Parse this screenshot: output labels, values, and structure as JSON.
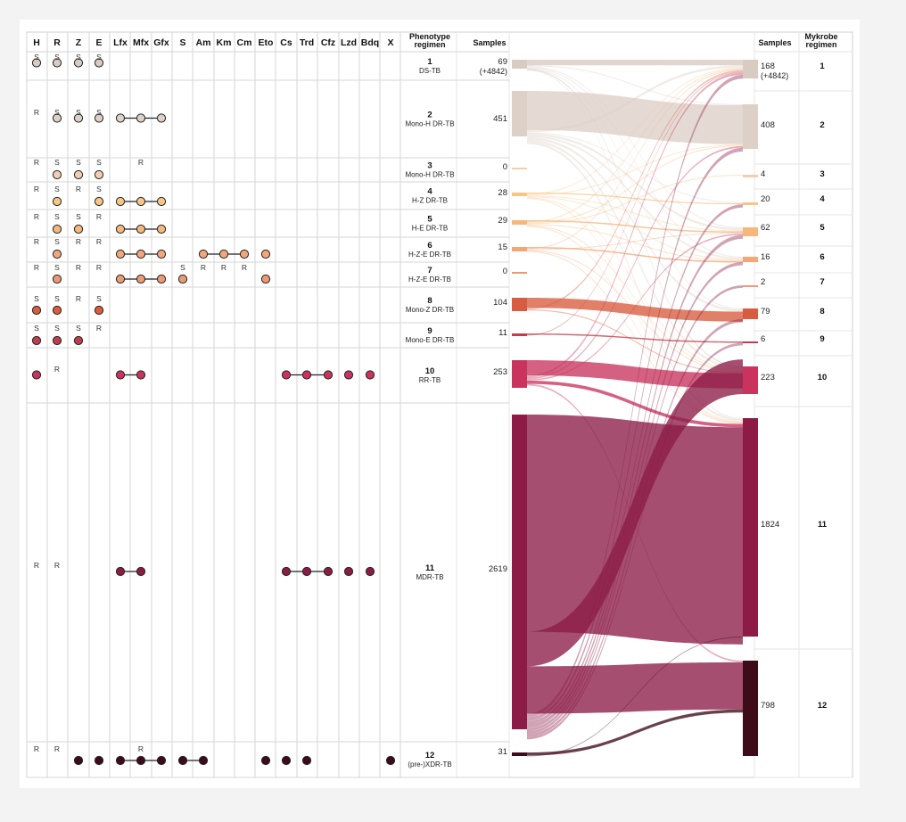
{
  "drug_headers": [
    "H",
    "R",
    "Z",
    "E",
    "Lfx",
    "Mfx",
    "Gfx",
    "S",
    "Am",
    "Km",
    "Cm",
    "Eto",
    "Cs",
    "Trd",
    "Cfz",
    "Lzd",
    "Bdq",
    "X"
  ],
  "phenotype_header": [
    "Phenotype",
    "regimen"
  ],
  "samples_header": "Samples",
  "mykrobe_header": [
    "Mykrobe",
    "regimen"
  ],
  "colors": {
    "1": "#d8cbc2",
    "2": "#ddd0c6",
    "3": "#f2cdb0",
    "4": "#f7c586",
    "5": "#f5b77b",
    "6": "#f2a77a",
    "7": "#ec9a75",
    "8": "#d85c3f",
    "9": "#c03d4d",
    "10": "#c8345d",
    "11": "#8c1c46",
    "12": "#3e0b18"
  },
  "regimens": [
    {
      "num": "1",
      "name": "DS-TB",
      "samples": "69",
      "samples_extra": "(+4842)",
      "letters": [
        {
          "c": "H",
          "t": "S"
        },
        {
          "c": "R",
          "t": "S"
        },
        {
          "c": "Z",
          "t": "S"
        },
        {
          "c": "E",
          "t": "S"
        }
      ],
      "dots": [
        {
          "c": "H",
          "l": 0
        },
        {
          "c": "R",
          "l": 0
        },
        {
          "c": "Z",
          "l": 0
        },
        {
          "c": "E",
          "l": 0
        }
      ],
      "lines": []
    },
    {
      "num": "2",
      "name": "Mono-H DR-TB",
      "samples": "451",
      "samples_extra": "",
      "letters": [
        {
          "c": "H",
          "t": "R"
        },
        {
          "c": "R",
          "t": "S"
        },
        {
          "c": "Z",
          "t": "S"
        },
        {
          "c": "E",
          "t": "S"
        }
      ],
      "dots": [
        {
          "c": "R",
          "l": 0
        },
        {
          "c": "Z",
          "l": 0
        },
        {
          "c": "E",
          "l": 0
        },
        {
          "c": "Lfx",
          "l": 0
        },
        {
          "c": "Mfx",
          "l": 0
        },
        {
          "c": "Gfx",
          "l": 0
        }
      ],
      "lines": [
        [
          "Lfx",
          "Gfx"
        ]
      ]
    },
    {
      "num": "3",
      "name": "Mono-H DR-TB",
      "samples": "0",
      "samples_extra": "",
      "letters": [
        {
          "c": "H",
          "t": "R"
        },
        {
          "c": "R",
          "t": "S"
        },
        {
          "c": "Z",
          "t": "S"
        },
        {
          "c": "E",
          "t": "S"
        },
        {
          "c": "Mfx",
          "t": "R"
        }
      ],
      "dots": [
        {
          "c": "R",
          "l": 1
        },
        {
          "c": "Z",
          "l": 1
        },
        {
          "c": "E",
          "l": 1
        }
      ],
      "lines": []
    },
    {
      "num": "4",
      "name": "H-Z DR-TB",
      "samples": "28",
      "samples_extra": "",
      "letters": [
        {
          "c": "H",
          "t": "R"
        },
        {
          "c": "R",
          "t": "S"
        },
        {
          "c": "Z",
          "t": "R"
        },
        {
          "c": "E",
          "t": "S"
        }
      ],
      "dots": [
        {
          "c": "R",
          "l": 1
        },
        {
          "c": "E",
          "l": 1
        },
        {
          "c": "Lfx",
          "l": 1
        },
        {
          "c": "Mfx",
          "l": 1
        },
        {
          "c": "Gfx",
          "l": 1
        }
      ],
      "lines": [
        [
          "Lfx",
          "Gfx"
        ]
      ]
    },
    {
      "num": "5",
      "name": "H-E DR-TB",
      "samples": "29",
      "samples_extra": "",
      "letters": [
        {
          "c": "H",
          "t": "R"
        },
        {
          "c": "R",
          "t": "S"
        },
        {
          "c": "Z",
          "t": "S"
        },
        {
          "c": "E",
          "t": "R"
        }
      ],
      "dots": [
        {
          "c": "R",
          "l": 1
        },
        {
          "c": "Z",
          "l": 1
        },
        {
          "c": "Lfx",
          "l": 1
        },
        {
          "c": "Mfx",
          "l": 1
        },
        {
          "c": "Gfx",
          "l": 1
        }
      ],
      "lines": [
        [
          "Lfx",
          "Gfx"
        ]
      ]
    },
    {
      "num": "6",
      "name": "H-Z-E DR-TB",
      "samples": "15",
      "samples_extra": "",
      "letters": [
        {
          "c": "H",
          "t": "R"
        },
        {
          "c": "R",
          "t": "S"
        },
        {
          "c": "Z",
          "t": "R"
        },
        {
          "c": "E",
          "t": "R"
        }
      ],
      "dots": [
        {
          "c": "R",
          "l": 1
        },
        {
          "c": "Lfx",
          "l": 1
        },
        {
          "c": "Mfx",
          "l": 1
        },
        {
          "c": "Gfx",
          "l": 1
        },
        {
          "c": "Am",
          "l": 1
        },
        {
          "c": "Km",
          "l": 1
        },
        {
          "c": "Cm",
          "l": 1
        },
        {
          "c": "Eto",
          "l": 1
        }
      ],
      "lines": [
        [
          "Lfx",
          "Gfx"
        ],
        [
          "Am",
          "Cm"
        ]
      ]
    },
    {
      "num": "7",
      "name": "H-Z-E DR-TB",
      "samples": "0",
      "samples_extra": "",
      "letters": [
        {
          "c": "H",
          "t": "R"
        },
        {
          "c": "R",
          "t": "S"
        },
        {
          "c": "Z",
          "t": "R"
        },
        {
          "c": "E",
          "t": "R"
        },
        {
          "c": "S",
          "t": "S"
        },
        {
          "c": "Am",
          "t": "R"
        },
        {
          "c": "Km",
          "t": "R"
        },
        {
          "c": "Cm",
          "t": "R"
        }
      ],
      "dots": [
        {
          "c": "R",
          "l": 1
        },
        {
          "c": "Lfx",
          "l": 1
        },
        {
          "c": "Mfx",
          "l": 1
        },
        {
          "c": "Gfx",
          "l": 1
        },
        {
          "c": "S",
          "l": 1
        },
        {
          "c": "Eto",
          "l": 1
        }
      ],
      "lines": [
        [
          "Lfx",
          "Gfx"
        ]
      ]
    },
    {
      "num": "8",
      "name": "Mono-Z DR-TB",
      "samples": "104",
      "samples_extra": "",
      "letters": [
        {
          "c": "H",
          "t": "S"
        },
        {
          "c": "R",
          "t": "S"
        },
        {
          "c": "Z",
          "t": "R"
        },
        {
          "c": "E",
          "t": "S"
        }
      ],
      "dots": [
        {
          "c": "H",
          "l": 1
        },
        {
          "c": "R",
          "l": 1
        },
        {
          "c": "E",
          "l": 1
        }
      ],
      "lines": []
    },
    {
      "num": "9",
      "name": "Mono-E DR-TB",
      "samples": "11",
      "samples_extra": "",
      "letters": [
        {
          "c": "H",
          "t": "S"
        },
        {
          "c": "R",
          "t": "S"
        },
        {
          "c": "Z",
          "t": "S"
        },
        {
          "c": "E",
          "t": "R"
        }
      ],
      "dots": [
        {
          "c": "H",
          "l": 1
        },
        {
          "c": "R",
          "l": 1
        },
        {
          "c": "Z",
          "l": 1
        }
      ],
      "lines": []
    },
    {
      "num": "10",
      "name": "RR-TB",
      "samples": "253",
      "samples_extra": "",
      "letters": [
        {
          "c": "R",
          "t": "R"
        }
      ],
      "dots": [
        {
          "c": "H",
          "l": 0
        },
        {
          "c": "Lfx",
          "l": 0
        },
        {
          "c": "Mfx",
          "l": 0
        },
        {
          "c": "Cs",
          "l": 0
        },
        {
          "c": "Trd",
          "l": 0
        },
        {
          "c": "Cfz",
          "l": 0
        },
        {
          "c": "Lzd",
          "l": 0
        },
        {
          "c": "Bdq",
          "l": 0
        }
      ],
      "lines": [
        [
          "Lfx",
          "Mfx"
        ],
        [
          "Cs",
          "Cfz"
        ]
      ]
    },
    {
      "num": "11",
      "name": "MDR-TB",
      "samples": "2619",
      "samples_extra": "",
      "letters": [
        {
          "c": "H",
          "t": "R"
        },
        {
          "c": "R",
          "t": "R"
        }
      ],
      "dots": [
        {
          "c": "Lfx",
          "l": 0
        },
        {
          "c": "Mfx",
          "l": 0
        },
        {
          "c": "Cs",
          "l": 0
        },
        {
          "c": "Trd",
          "l": 0
        },
        {
          "c": "Cfz",
          "l": 0
        },
        {
          "c": "Lzd",
          "l": 0
        },
        {
          "c": "Bdq",
          "l": 0
        }
      ],
      "lines": [
        [
          "Lfx",
          "Mfx"
        ],
        [
          "Cs",
          "Cfz"
        ]
      ]
    },
    {
      "num": "12",
      "name": "(pre-)XDR-TB",
      "samples": "31",
      "samples_extra": "",
      "letters": [
        {
          "c": "H",
          "t": "R"
        },
        {
          "c": "R",
          "t": "R"
        },
        {
          "c": "Mfx",
          "t": "R"
        }
      ],
      "dots": [
        {
          "c": "Z",
          "l": 1
        },
        {
          "c": "E",
          "l": 1
        },
        {
          "c": "Lfx",
          "l": 1
        },
        {
          "c": "Mfx",
          "l": 1
        },
        {
          "c": "Gfx",
          "l": 1
        },
        {
          "c": "S",
          "l": 1
        },
        {
          "c": "Am",
          "l": 1
        },
        {
          "c": "Eto",
          "l": 1
        },
        {
          "c": "Cs",
          "l": 1
        },
        {
          "c": "Trd",
          "l": 1
        },
        {
          "c": "X",
          "l": 1
        }
      ],
      "lines": [
        [
          "Lfx",
          "Gfx"
        ],
        [
          "S",
          "Am"
        ]
      ]
    }
  ],
  "mykrobe": [
    {
      "num": "1",
      "samples": "168",
      "samples_extra": "(+4842)"
    },
    {
      "num": "2",
      "samples": "408",
      "samples_extra": ""
    },
    {
      "num": "3",
      "samples": "4",
      "samples_extra": ""
    },
    {
      "num": "4",
      "samples": "20",
      "samples_extra": ""
    },
    {
      "num": "5",
      "samples": "62",
      "samples_extra": ""
    },
    {
      "num": "6",
      "samples": "16",
      "samples_extra": ""
    },
    {
      "num": "7",
      "samples": "2",
      "samples_extra": ""
    },
    {
      "num": "8",
      "samples": "79",
      "samples_extra": ""
    },
    {
      "num": "9",
      "samples": "6",
      "samples_extra": ""
    },
    {
      "num": "10",
      "samples": "223",
      "samples_extra": ""
    },
    {
      "num": "11",
      "samples": "1824",
      "samples_extra": ""
    },
    {
      "num": "12",
      "samples": "798",
      "samples_extra": ""
    }
  ]
}
